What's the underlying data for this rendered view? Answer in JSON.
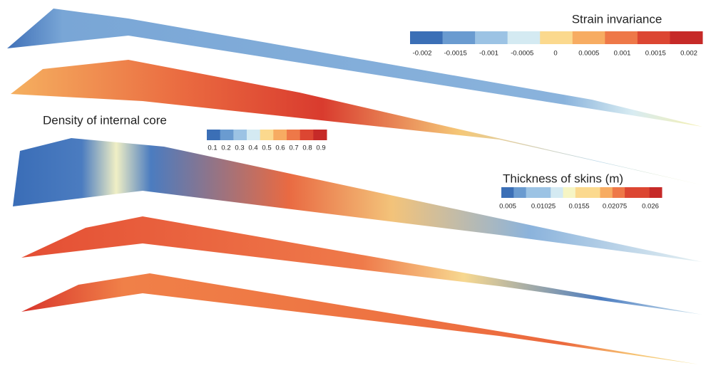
{
  "legends": [
    {
      "title": "Strain invariance",
      "ticks": [
        "-0.002",
        "-0.0015",
        "-0.001",
        "-0.0005",
        "0",
        "0.0005",
        "0.001",
        "0.0015",
        "0.002"
      ]
    },
    {
      "title": "Density of internal core",
      "ticks": [
        "0.1",
        "0.2",
        "0.3",
        "0.4",
        "0.5",
        "0.6",
        "0.7",
        "0.8",
        "0.9"
      ]
    },
    {
      "title": "Thickness of skins (m)",
      "ticks": [
        "0.005",
        "0.01025",
        "0.0155",
        "0.02075",
        "0.026"
      ]
    }
  ]
}
